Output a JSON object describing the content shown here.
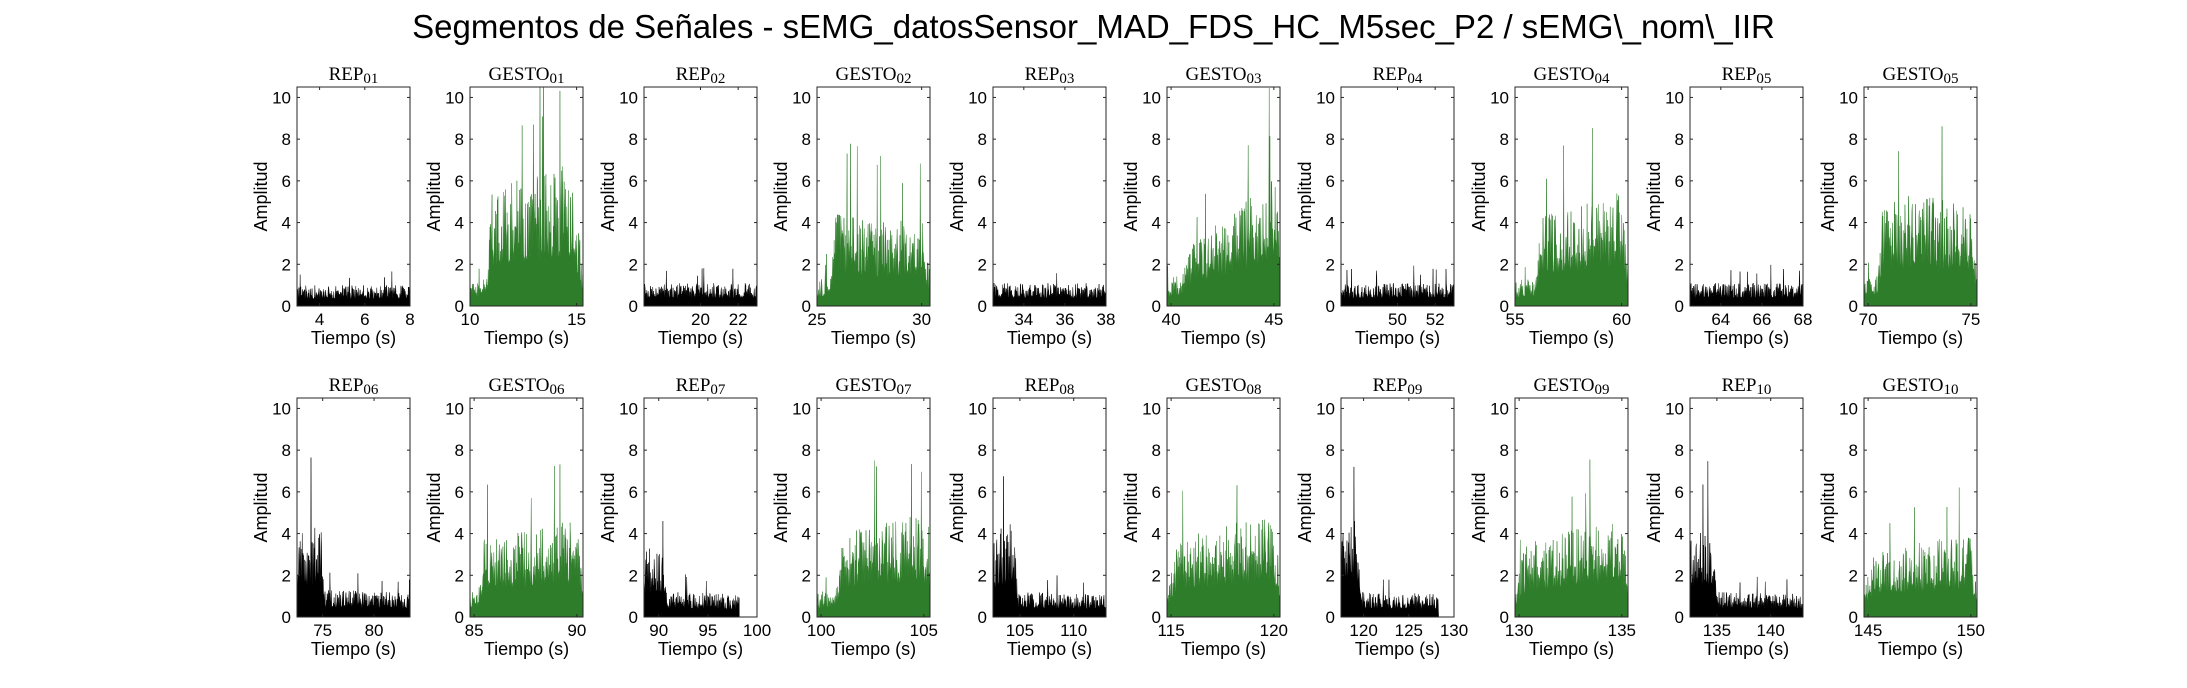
{
  "title": "Segmentos de Señales - sEMG_datosSensor_MAD_FDS_HC_M5sec_P2 / sEMG\\_nom\\_IIR",
  "colors": {
    "rep": "#000000",
    "gesto": "#2e7d2a",
    "axis": "#262626"
  },
  "chart_data": [
    {
      "type": "area",
      "title": "REP_01",
      "kind": "rep",
      "xlim": [
        3,
        8
      ],
      "xticks": [
        4,
        6,
        8
      ],
      "ylim": [
        0,
        10.5
      ],
      "yticks": [
        0,
        2,
        4,
        6,
        8,
        10
      ],
      "xlabel": "Tiempo (s)",
      "ylabel": "Amplitud",
      "signal_end": 8,
      "profile": [
        {
          "t": 3,
          "a": 1.0
        },
        {
          "t": 8,
          "a": 1.0
        }
      ],
      "seed": 1
    },
    {
      "type": "area",
      "title": "GESTO_01",
      "kind": "gesto",
      "xlim": [
        10,
        15.3
      ],
      "xticks": [
        10,
        15
      ],
      "ylim": [
        0,
        10.5
      ],
      "yticks": [
        0,
        2,
        4,
        6,
        8,
        10
      ],
      "xlabel": "Tiempo (s)",
      "ylabel": "Amplitud",
      "signal_end": 15.3,
      "profile": [
        {
          "t": 10,
          "a": 1.2
        },
        {
          "t": 10.8,
          "a": 1.3
        },
        {
          "t": 11.0,
          "a": 5.5
        },
        {
          "t": 13.0,
          "a": 6.5
        },
        {
          "t": 14.8,
          "a": 6.8
        },
        {
          "t": 15.3,
          "a": 2.0
        }
      ],
      "seed": 2
    },
    {
      "type": "area",
      "title": "REP_02",
      "kind": "rep",
      "xlim": [
        17,
        23
      ],
      "xticks": [
        20,
        22
      ],
      "ylim": [
        0,
        10.5
      ],
      "yticks": [
        0,
        2,
        4,
        6,
        8,
        10
      ],
      "xlabel": "Tiempo (s)",
      "ylabel": "Amplitud",
      "signal_end": 23,
      "profile": [
        {
          "t": 17,
          "a": 1.1
        },
        {
          "t": 23,
          "a": 1.1
        }
      ],
      "seed": 3
    },
    {
      "type": "area",
      "title": "GESTO_02",
      "kind": "gesto",
      "xlim": [
        25,
        30.4
      ],
      "xticks": [
        25,
        30
      ],
      "ylim": [
        0,
        10.5
      ],
      "yticks": [
        0,
        2,
        4,
        6,
        8,
        10
      ],
      "xlabel": "Tiempo (s)",
      "ylabel": "Amplitud",
      "signal_end": 30.4,
      "profile": [
        {
          "t": 25,
          "a": 1.2
        },
        {
          "t": 25.6,
          "a": 1.5
        },
        {
          "t": 25.9,
          "a": 4.5
        },
        {
          "t": 28,
          "a": 4.0
        },
        {
          "t": 30,
          "a": 4.3
        },
        {
          "t": 30.4,
          "a": 2.0
        }
      ],
      "seed": 4
    },
    {
      "type": "area",
      "title": "REP_03",
      "kind": "rep",
      "xlim": [
        32.5,
        38
      ],
      "xticks": [
        34,
        36,
        38
      ],
      "ylim": [
        0,
        10.5
      ],
      "yticks": [
        0,
        2,
        4,
        6,
        8,
        10
      ],
      "xlabel": "Tiempo (s)",
      "ylabel": "Amplitud",
      "signal_end": 38,
      "profile": [
        {
          "t": 32.5,
          "a": 1.1
        },
        {
          "t": 38,
          "a": 1.1
        }
      ],
      "seed": 5
    },
    {
      "type": "area",
      "title": "GESTO_03",
      "kind": "gesto",
      "xlim": [
        39.8,
        45.3
      ],
      "xticks": [
        40,
        45
      ],
      "ylim": [
        0,
        10.5
      ],
      "yticks": [
        0,
        2,
        4,
        6,
        8,
        10
      ],
      "xlabel": "Tiempo (s)",
      "ylabel": "Amplitud",
      "signal_end": 45.3,
      "profile": [
        {
          "t": 39.8,
          "a": 1.2
        },
        {
          "t": 40.5,
          "a": 1.6
        },
        {
          "t": 41.0,
          "a": 3.0
        },
        {
          "t": 43,
          "a": 4.5
        },
        {
          "t": 45.2,
          "a": 6.5
        },
        {
          "t": 45.3,
          "a": 3.0
        }
      ],
      "seed": 6
    },
    {
      "type": "area",
      "title": "REP_04",
      "kind": "rep",
      "xlim": [
        47,
        53
      ],
      "xticks": [
        50,
        52
      ],
      "ylim": [
        0,
        10.5
      ],
      "yticks": [
        0,
        2,
        4,
        6,
        8,
        10
      ],
      "xlabel": "Tiempo (s)",
      "ylabel": "Amplitud",
      "signal_end": 53,
      "profile": [
        {
          "t": 47,
          "a": 1.1
        },
        {
          "t": 53,
          "a": 1.1
        }
      ],
      "seed": 7
    },
    {
      "type": "area",
      "title": "GESTO_04",
      "kind": "gesto",
      "xlim": [
        55,
        60.3
      ],
      "xticks": [
        55,
        60
      ],
      "ylim": [
        0,
        10.5
      ],
      "yticks": [
        0,
        2,
        4,
        6,
        8,
        10
      ],
      "xlabel": "Tiempo (s)",
      "ylabel": "Amplitud",
      "signal_end": 60.3,
      "profile": [
        {
          "t": 55,
          "a": 1.2
        },
        {
          "t": 56,
          "a": 1.4
        },
        {
          "t": 56.2,
          "a": 4.5
        },
        {
          "t": 58,
          "a": 4.8
        },
        {
          "t": 60,
          "a": 5.5
        },
        {
          "t": 60.3,
          "a": 2.0
        }
      ],
      "seed": 8
    },
    {
      "type": "area",
      "title": "REP_05",
      "kind": "rep",
      "xlim": [
        62.5,
        68
      ],
      "xticks": [
        64,
        66,
        68
      ],
      "ylim": [
        0,
        10.5
      ],
      "yticks": [
        0,
        2,
        4,
        6,
        8,
        10
      ],
      "xlabel": "Tiempo (s)",
      "ylabel": "Amplitud",
      "signal_end": 68,
      "profile": [
        {
          "t": 62.5,
          "a": 1.1
        },
        {
          "t": 68,
          "a": 1.1
        }
      ],
      "seed": 9
    },
    {
      "type": "area",
      "title": "GESTO_05",
      "kind": "gesto",
      "xlim": [
        69.8,
        75.3
      ],
      "xticks": [
        70,
        75
      ],
      "ylim": [
        0,
        10.5
      ],
      "yticks": [
        0,
        2,
        4,
        6,
        8,
        10
      ],
      "xlabel": "Tiempo (s)",
      "ylabel": "Amplitud",
      "signal_end": 75.3,
      "profile": [
        {
          "t": 69.8,
          "a": 1.3
        },
        {
          "t": 70.5,
          "a": 1.6
        },
        {
          "t": 70.7,
          "a": 4.8
        },
        {
          "t": 72.5,
          "a": 5.5
        },
        {
          "t": 75,
          "a": 4.8
        },
        {
          "t": 75.3,
          "a": 2.0
        }
      ],
      "seed": 10
    },
    {
      "type": "area",
      "title": "REP_06",
      "kind": "rep",
      "xlim": [
        72.5,
        83.5
      ],
      "xticks": [
        75,
        80
      ],
      "ylim": [
        0,
        10.5
      ],
      "yticks": [
        0,
        2,
        4,
        6,
        8,
        10
      ],
      "xlabel": "Tiempo (s)",
      "ylabel": "Amplitud",
      "signal_end": 83.5,
      "profile": [
        {
          "t": 72.5,
          "a": 4.0
        },
        {
          "t": 74.8,
          "a": 4.5
        },
        {
          "t": 75.2,
          "a": 1.3
        },
        {
          "t": 83.5,
          "a": 1.2
        }
      ],
      "seed": 11
    },
    {
      "type": "area",
      "title": "GESTO_06",
      "kind": "gesto",
      "xlim": [
        84.8,
        90.3
      ],
      "xticks": [
        85,
        90
      ],
      "ylim": [
        0,
        10.5
      ],
      "yticks": [
        0,
        2,
        4,
        6,
        8,
        10
      ],
      "xlabel": "Tiempo (s)",
      "ylabel": "Amplitud",
      "signal_end": 90.3,
      "profile": [
        {
          "t": 84.8,
          "a": 1.2
        },
        {
          "t": 85.2,
          "a": 1.4
        },
        {
          "t": 85.5,
          "a": 3.8
        },
        {
          "t": 88,
          "a": 4.2
        },
        {
          "t": 90,
          "a": 4.8
        },
        {
          "t": 90.3,
          "a": 2.0
        }
      ],
      "seed": 12
    },
    {
      "type": "area",
      "title": "REP_07",
      "kind": "rep",
      "xlim": [
        88.5,
        100
      ],
      "xticks": [
        90,
        95,
        100
      ],
      "ylim": [
        0,
        10.5
      ],
      "yticks": [
        0,
        2,
        4,
        6,
        8,
        10
      ],
      "xlabel": "Tiempo (s)",
      "ylabel": "Amplitud",
      "signal_end": 98.2,
      "profile": [
        {
          "t": 88.5,
          "a": 3.2
        },
        {
          "t": 90.4,
          "a": 3.5
        },
        {
          "t": 90.8,
          "a": 1.2
        },
        {
          "t": 98.2,
          "a": 1.1
        }
      ],
      "seed": 13
    },
    {
      "type": "area",
      "title": "GESTO_07",
      "kind": "gesto",
      "xlim": [
        99.8,
        105.3
      ],
      "xticks": [
        100,
        105
      ],
      "ylim": [
        0,
        10.5
      ],
      "yticks": [
        0,
        2,
        4,
        6,
        8,
        10
      ],
      "xlabel": "Tiempo (s)",
      "ylabel": "Amplitud",
      "signal_end": 105.3,
      "profile": [
        {
          "t": 99.8,
          "a": 1.2
        },
        {
          "t": 100.7,
          "a": 1.4
        },
        {
          "t": 101.0,
          "a": 4.0
        },
        {
          "t": 103,
          "a": 4.5
        },
        {
          "t": 105,
          "a": 5.0
        },
        {
          "t": 105.3,
          "a": 2.0
        }
      ],
      "seed": 14
    },
    {
      "type": "area",
      "title": "REP_08",
      "kind": "rep",
      "xlim": [
        102.5,
        113
      ],
      "xticks": [
        105,
        110
      ],
      "ylim": [
        0,
        10.5
      ],
      "yticks": [
        0,
        2,
        4,
        6,
        8,
        10
      ],
      "xlabel": "Tiempo (s)",
      "ylabel": "Amplitud",
      "signal_end": 113,
      "profile": [
        {
          "t": 102.5,
          "a": 4.0
        },
        {
          "t": 104.4,
          "a": 4.8
        },
        {
          "t": 104.8,
          "a": 1.2
        },
        {
          "t": 113,
          "a": 1.1
        }
      ],
      "seed": 15
    },
    {
      "type": "area",
      "title": "GESTO_08",
      "kind": "gesto",
      "xlim": [
        114.8,
        120.3
      ],
      "xticks": [
        115,
        120
      ],
      "ylim": [
        0,
        10.5
      ],
      "yticks": [
        0,
        2,
        4,
        6,
        8,
        10
      ],
      "xlabel": "Tiempo (s)",
      "ylabel": "Amplitud",
      "signal_end": 120.3,
      "profile": [
        {
          "t": 114.8,
          "a": 1.3
        },
        {
          "t": 115.3,
          "a": 3.8
        },
        {
          "t": 118,
          "a": 4.5
        },
        {
          "t": 120,
          "a": 5.0
        },
        {
          "t": 120.3,
          "a": 2.0
        }
      ],
      "seed": 16
    },
    {
      "type": "area",
      "title": "REP_09",
      "kind": "rep",
      "xlim": [
        117.5,
        130
      ],
      "xticks": [
        120,
        125,
        130
      ],
      "ylim": [
        0,
        10.5
      ],
      "yticks": [
        0,
        2,
        4,
        6,
        8,
        10
      ],
      "xlabel": "Tiempo (s)",
      "ylabel": "Amplitud",
      "signal_end": 128.3,
      "profile": [
        {
          "t": 117.5,
          "a": 4.0
        },
        {
          "t": 119.4,
          "a": 4.8
        },
        {
          "t": 119.9,
          "a": 1.2
        },
        {
          "t": 128.3,
          "a": 1.1
        }
      ],
      "seed": 17
    },
    {
      "type": "area",
      "title": "GESTO_09",
      "kind": "gesto",
      "xlim": [
        129.8,
        135.3
      ],
      "xticks": [
        130,
        135
      ],
      "ylim": [
        0,
        10.5
      ],
      "yticks": [
        0,
        2,
        4,
        6,
        8,
        10
      ],
      "xlabel": "Tiempo (s)",
      "ylabel": "Amplitud",
      "signal_end": 135.3,
      "profile": [
        {
          "t": 129.8,
          "a": 1.3
        },
        {
          "t": 130.3,
          "a": 3.5
        },
        {
          "t": 132.5,
          "a": 4.2
        },
        {
          "t": 135,
          "a": 4.6
        },
        {
          "t": 135.3,
          "a": 2.0
        }
      ],
      "seed": 18
    },
    {
      "type": "area",
      "title": "REP_10",
      "kind": "rep",
      "xlim": [
        132.5,
        143
      ],
      "xticks": [
        135,
        140
      ],
      "ylim": [
        0,
        10.5
      ],
      "yticks": [
        0,
        2,
        4,
        6,
        8,
        10
      ],
      "xlabel": "Tiempo (s)",
      "ylabel": "Amplitud",
      "signal_end": 143,
      "profile": [
        {
          "t": 132.5,
          "a": 4.0
        },
        {
          "t": 134.5,
          "a": 4.5
        },
        {
          "t": 135.0,
          "a": 1.2
        },
        {
          "t": 143,
          "a": 1.1
        }
      ],
      "seed": 19
    },
    {
      "type": "area",
      "title": "GESTO_10",
      "kind": "gesto",
      "xlim": [
        144.8,
        150.3
      ],
      "xticks": [
        145,
        150
      ],
      "ylim": [
        0,
        10.5
      ],
      "yticks": [
        0,
        2,
        4,
        6,
        8,
        10
      ],
      "xlabel": "Tiempo (s)",
      "ylabel": "Amplitud",
      "signal_end": 150.3,
      "profile": [
        {
          "t": 144.8,
          "a": 1.2
        },
        {
          "t": 145.2,
          "a": 3.0
        },
        {
          "t": 147.5,
          "a": 3.6
        },
        {
          "t": 150,
          "a": 4.0
        },
        {
          "t": 150.3,
          "a": 1.5
        }
      ],
      "seed": 20
    }
  ]
}
